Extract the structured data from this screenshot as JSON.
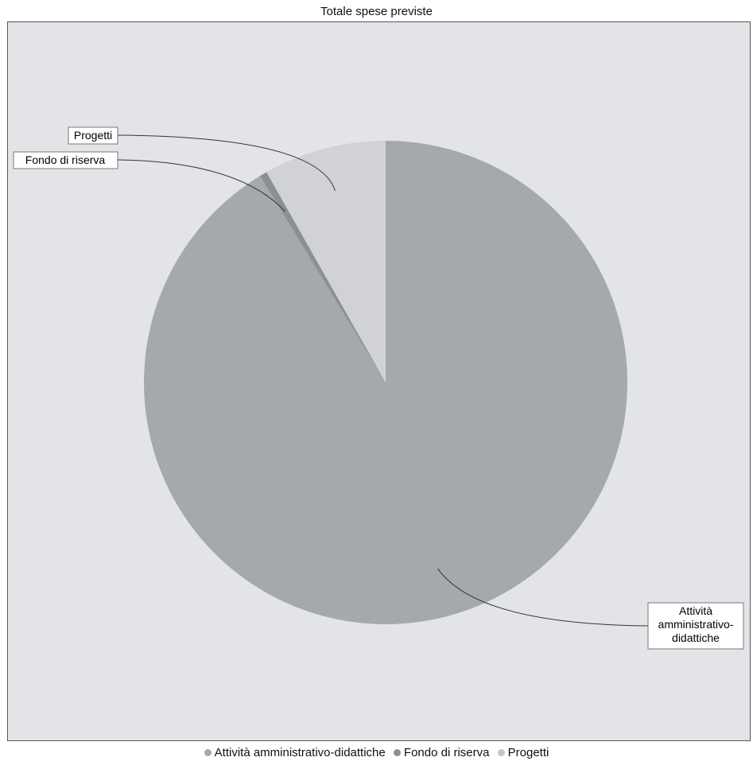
{
  "chart_data": {
    "type": "pie",
    "title": "Totale spese previste",
    "slices": [
      {
        "label": "Attività amministrativo-didattiche",
        "value": 91.3,
        "color": "#a6a9ab"
      },
      {
        "label": "Fondo di riserva",
        "value": 0.5,
        "color": "#8c9090"
      },
      {
        "label": "Progetti",
        "value": 8.2,
        "color": "#d0d2d6"
      }
    ],
    "data_labels": {
      "attivita": [
        "Attività",
        "amministrativo-",
        "didattiche"
      ],
      "fondo": "Fondo di riserva",
      "progetti": "Progetti"
    },
    "legend_position": "bottom",
    "legend": [
      {
        "label": "Attività amministrativo-didattiche",
        "color": "#a6a9ab"
      },
      {
        "label": "Fondo di riserva",
        "color": "#8c9090"
      },
      {
        "label": "Progetti",
        "color": "#c4c6cb"
      }
    ]
  }
}
